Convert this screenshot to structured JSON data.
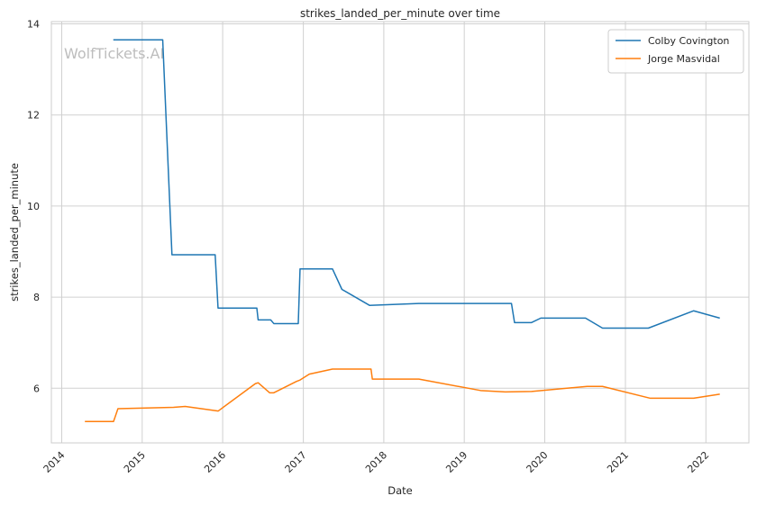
{
  "chart_data": {
    "type": "line",
    "title": "strikes_landed_per_minute over time",
    "xlabel": "Date",
    "ylabel": "strikes_landed_per_minute",
    "watermark": "WolfTickets.AI",
    "xlim": [
      "2013-11-15",
      "2022-07-15"
    ],
    "ylim": [
      4.8,
      14.05
    ],
    "xticks": [
      {
        "label": "2014",
        "date": "2014-01-01"
      },
      {
        "label": "2015",
        "date": "2015-01-01"
      },
      {
        "label": "2016",
        "date": "2016-01-01"
      },
      {
        "label": "2017",
        "date": "2017-01-01"
      },
      {
        "label": "2018",
        "date": "2018-01-01"
      },
      {
        "label": "2019",
        "date": "2019-01-01"
      },
      {
        "label": "2020",
        "date": "2020-01-01"
      },
      {
        "label": "2021",
        "date": "2021-01-01"
      },
      {
        "label": "2022",
        "date": "2022-01-01"
      }
    ],
    "yticks": [
      {
        "label": "6",
        "value": 6
      },
      {
        "label": "8",
        "value": 8
      },
      {
        "label": "10",
        "value": 10
      },
      {
        "label": "12",
        "value": 12
      },
      {
        "label": "14",
        "value": 14
      }
    ],
    "grid": true,
    "legend_position": "top-right",
    "series": [
      {
        "name": "Colby Covington",
        "color": "#1f77b4",
        "points": [
          [
            "2014-08-23",
            13.65
          ],
          [
            "2015-04-04",
            13.65
          ],
          [
            "2015-05-16",
            8.93
          ],
          [
            "2015-11-28",
            8.93
          ],
          [
            "2015-12-11",
            7.76
          ],
          [
            "2016-06-04",
            7.76
          ],
          [
            "2016-06-10",
            7.5
          ],
          [
            "2016-08-06",
            7.5
          ],
          [
            "2016-08-20",
            7.42
          ],
          [
            "2016-12-09",
            7.42
          ],
          [
            "2016-12-17",
            8.62
          ],
          [
            "2017-05-13",
            8.62
          ],
          [
            "2017-06-25",
            8.17
          ],
          [
            "2017-10-28",
            7.82
          ],
          [
            "2018-06-09",
            7.86
          ],
          [
            "2019-08-03",
            7.86
          ],
          [
            "2019-08-17",
            7.44
          ],
          [
            "2019-11-01",
            7.44
          ],
          [
            "2019-12-14",
            7.54
          ],
          [
            "2020-07-04",
            7.54
          ],
          [
            "2020-09-19",
            7.32
          ],
          [
            "2021-04-15",
            7.32
          ],
          [
            "2021-11-06",
            7.7
          ],
          [
            "2022-03-05",
            7.54
          ]
        ]
      },
      {
        "name": "Jorge Masvidal",
        "color": "#ff7f0e",
        "points": [
          [
            "2014-04-16",
            5.27
          ],
          [
            "2014-08-24",
            5.27
          ],
          [
            "2014-09-13",
            5.55
          ],
          [
            "2015-05-23",
            5.58
          ],
          [
            "2015-07-15",
            5.6
          ],
          [
            "2015-12-12",
            5.5
          ],
          [
            "2016-05-28",
            6.1
          ],
          [
            "2016-06-10",
            6.12
          ],
          [
            "2016-08-01",
            5.9
          ],
          [
            "2016-08-20",
            5.9
          ],
          [
            "2016-12-01",
            6.15
          ],
          [
            "2016-12-17",
            6.18
          ],
          [
            "2017-01-28",
            6.31
          ],
          [
            "2017-05-13",
            6.42
          ],
          [
            "2017-11-04",
            6.42
          ],
          [
            "2017-11-10",
            6.2
          ],
          [
            "2018-06-09",
            6.2
          ],
          [
            "2019-03-16",
            5.95
          ],
          [
            "2019-07-06",
            5.92
          ],
          [
            "2019-11-02",
            5.93
          ],
          [
            "2020-07-11",
            6.04
          ],
          [
            "2020-09-19",
            6.04
          ],
          [
            "2021-04-24",
            5.78
          ],
          [
            "2021-11-06",
            5.78
          ],
          [
            "2022-03-05",
            5.87
          ]
        ]
      }
    ]
  }
}
